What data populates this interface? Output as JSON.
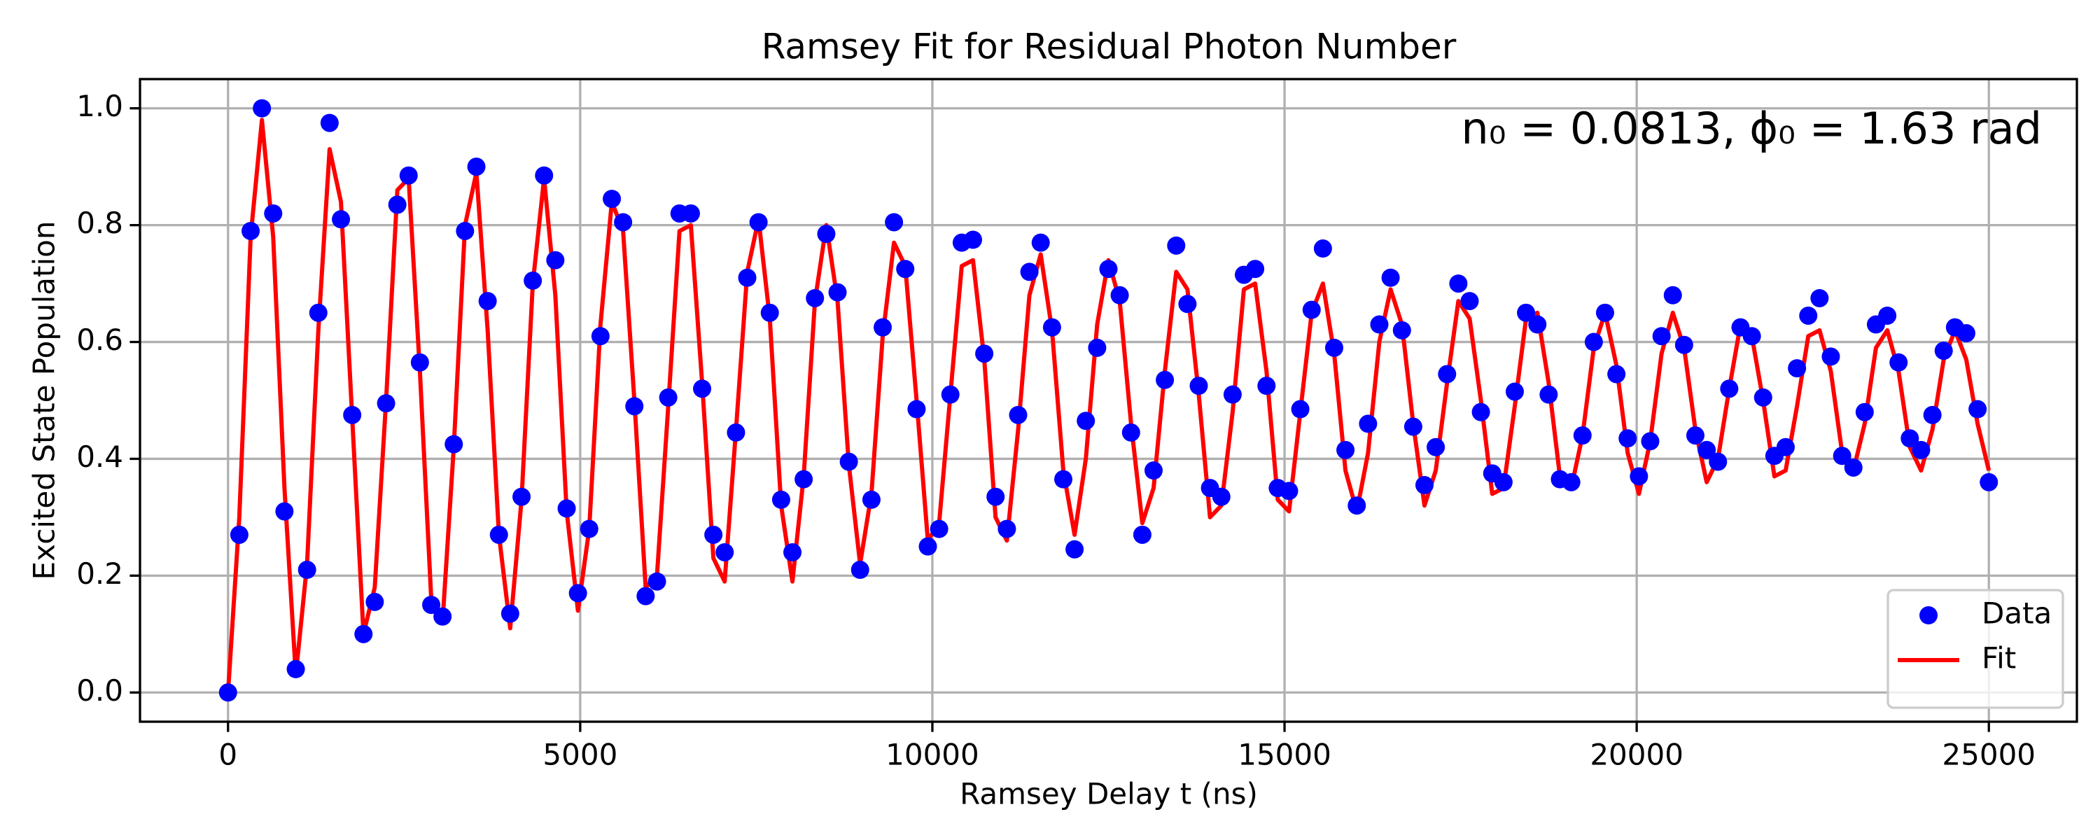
{
  "chart_data": {
    "type": "line",
    "title": "Ramsey Fit for Residual Photon Number",
    "xlabel": "Ramsey Delay t (ns)",
    "ylabel": "Excited State Population",
    "annotation": "n₀ = 0.0813, ϕ₀ = 1.63 rad",
    "xlim": [
      -1250,
      26250
    ],
    "ylim": [
      -0.05,
      1.05
    ],
    "xticks": [
      0,
      5000,
      10000,
      15000,
      20000,
      25000
    ],
    "yticks": [
      {
        "value": 0,
        "label": "0.0"
      },
      {
        "value": 0.2,
        "label": "0.2"
      },
      {
        "value": 0.4,
        "label": "0.4"
      },
      {
        "value": 0.6,
        "label": "0.6"
      },
      {
        "value": 0.8,
        "label": "0.8"
      },
      {
        "value": 1,
        "label": "1.0"
      }
    ],
    "grid": true,
    "legend": "lower right",
    "x": [
      0,
      160,
      321,
      481,
      641,
      801,
      962,
      1122,
      1282,
      1442,
      1603,
      1763,
      1923,
      2083,
      2244,
      2404,
      2564,
      2724,
      2885,
      3045,
      3205,
      3365,
      3526,
      3686,
      3846,
      4006,
      4167,
      4327,
      4487,
      4647,
      4808,
      4968,
      5128,
      5288,
      5449,
      5609,
      5769,
      5929,
      6090,
      6250,
      6410,
      6571,
      6731,
      6891,
      7051,
      7212,
      7372,
      7532,
      7692,
      7853,
      8013,
      8173,
      8333,
      8494,
      8654,
      8814,
      8974,
      9135,
      9295,
      9455,
      9615,
      9776,
      9936,
      10096,
      10256,
      10417,
      10577,
      10737,
      10897,
      11058,
      11218,
      11378,
      11538,
      11699,
      11859,
      12019,
      12179,
      12340,
      12500,
      12660,
      12821,
      12981,
      13141,
      13301,
      13462,
      13622,
      13782,
      13942,
      14103,
      14263,
      14423,
      14583,
      14744,
      14904,
      15064,
      15224,
      15385,
      15545,
      15705,
      15865,
      16026,
      16186,
      16346,
      16506,
      16667,
      16827,
      16987,
      17147,
      17308,
      17468,
      17628,
      17788,
      17949,
      18109,
      18269,
      18429,
      18590,
      18750,
      18910,
      19071,
      19231,
      19391,
      19551,
      19712,
      19872,
      20032,
      20192,
      20353,
      20513,
      20673,
      20833,
      20994,
      21154,
      21314,
      21474,
      21635,
      21795,
      21955,
      22115,
      22276,
      22436,
      22596,
      22756,
      22917,
      23077,
      23237,
      23397,
      23558,
      23718,
      23878,
      24038,
      24199,
      24359,
      24519,
      24679,
      24840,
      25000
    ],
    "series": [
      {
        "name": "Data",
        "type": "scatter",
        "color": "#0000ff",
        "values": [
          0,
          0.27,
          0.79,
          1.0,
          0.82,
          0.31,
          0.04,
          0.21,
          0.65,
          0.975,
          0.81,
          0.475,
          0.1,
          0.155,
          0.495,
          0.835,
          0.885,
          0.565,
          0.15,
          0.13,
          0.425,
          0.79,
          0.9,
          0.67,
          0.27,
          0.135,
          0.335,
          0.705,
          0.885,
          0.74,
          0.315,
          0.17,
          0.28,
          0.61,
          0.845,
          0.805,
          0.49,
          0.165,
          0.19,
          0.505,
          0.82,
          0.82,
          0.52,
          0.27,
          0.24,
          0.445,
          0.71,
          0.805,
          0.65,
          0.33,
          0.24,
          0.365,
          0.675,
          0.785,
          0.685,
          0.395,
          0.21,
          0.33,
          0.625,
          0.805,
          0.725,
          0.485,
          0.25,
          0.28,
          0.51,
          0.77,
          0.775,
          0.58,
          0.335,
          0.28,
          0.475,
          0.72,
          0.77,
          0.625,
          0.365,
          0.245,
          0.465,
          0.59,
          0.725,
          0.68,
          0.445,
          0.27,
          0.38,
          0.535,
          0.765,
          0.665,
          0.525,
          0.35,
          0.335,
          0.51,
          0.715,
          0.725,
          0.525,
          0.35,
          0.345,
          0.485,
          0.655,
          0.76,
          0.59,
          0.415,
          0.32,
          0.46,
          0.63,
          0.71,
          0.62,
          0.455,
          0.355,
          0.42,
          0.545,
          0.7,
          0.67,
          0.48,
          0.375,
          0.36,
          0.515,
          0.65,
          0.63,
          0.51,
          0.365,
          0.36,
          0.44,
          0.6,
          0.65,
          0.545,
          0.435,
          0.37,
          0.43,
          0.61,
          0.68,
          0.595,
          0.44,
          0.415,
          0.395,
          0.52,
          0.625,
          0.61,
          0.505,
          0.405,
          0.42,
          0.555,
          0.645,
          0.675,
          0.575,
          0.405,
          0.385,
          0.48,
          0.63,
          0.645,
          0.565,
          0.435,
          0.415,
          0.475,
          0.585,
          0.625,
          0.615,
          0.485,
          0.36
        ]
      },
      {
        "name": "Fit",
        "type": "line",
        "color": "#ff0000",
        "values": [
          0,
          0.3,
          0.78,
          0.98,
          0.78,
          0.35,
          0.03,
          0.22,
          0.62,
          0.93,
          0.84,
          0.47,
          0.1,
          0.18,
          0.5,
          0.86,
          0.88,
          0.55,
          0.16,
          0.12,
          0.42,
          0.8,
          0.89,
          0.62,
          0.27,
          0.11,
          0.33,
          0.7,
          0.88,
          0.68,
          0.31,
          0.14,
          0.28,
          0.63,
          0.84,
          0.79,
          0.5,
          0.18,
          0.2,
          0.49,
          0.79,
          0.8,
          0.53,
          0.23,
          0.19,
          0.45,
          0.72,
          0.81,
          0.64,
          0.32,
          0.19,
          0.37,
          0.67,
          0.8,
          0.67,
          0.39,
          0.22,
          0.34,
          0.61,
          0.77,
          0.73,
          0.5,
          0.26,
          0.29,
          0.51,
          0.73,
          0.74,
          0.57,
          0.3,
          0.26,
          0.45,
          0.68,
          0.75,
          0.62,
          0.38,
          0.27,
          0.4,
          0.63,
          0.74,
          0.67,
          0.46,
          0.29,
          0.35,
          0.55,
          0.72,
          0.69,
          0.51,
          0.3,
          0.32,
          0.48,
          0.69,
          0.7,
          0.55,
          0.33,
          0.31,
          0.48,
          0.65,
          0.7,
          0.58,
          0.38,
          0.31,
          0.41,
          0.6,
          0.69,
          0.63,
          0.46,
          0.32,
          0.38,
          0.53,
          0.67,
          0.64,
          0.5,
          0.34,
          0.35,
          0.49,
          0.64,
          0.65,
          0.53,
          0.37,
          0.35,
          0.44,
          0.59,
          0.65,
          0.56,
          0.41,
          0.34,
          0.43,
          0.58,
          0.65,
          0.59,
          0.45,
          0.36,
          0.4,
          0.52,
          0.63,
          0.61,
          0.5,
          0.37,
          0.38,
          0.49,
          0.61,
          0.62,
          0.55,
          0.41,
          0.38,
          0.46,
          0.59,
          0.62,
          0.55,
          0.42,
          0.38,
          0.45,
          0.57,
          0.62,
          0.57,
          0.46,
          0.38
        ]
      }
    ]
  }
}
